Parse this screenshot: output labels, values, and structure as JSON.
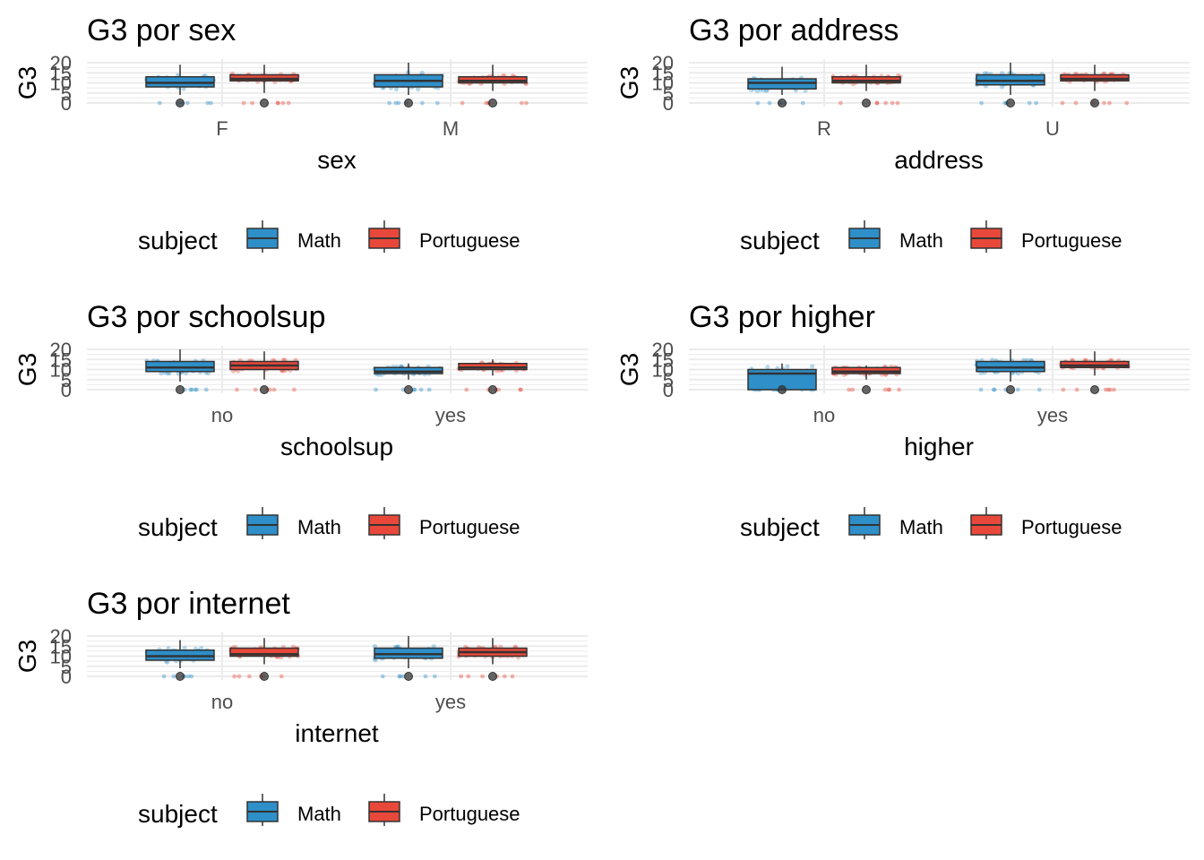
{
  "colors": {
    "math": "#2e8fc9",
    "portuguese": "#e8483a",
    "grid": "#ebebeb",
    "text": "#4d4d4d"
  },
  "legend_title": "subject",
  "legend_labels": [
    "Math",
    "Portuguese"
  ],
  "chart_data": [
    {
      "type": "boxplot",
      "title": "G3 por sex",
      "xlabel": "sex",
      "ylabel": "G3",
      "categories": [
        "F",
        "M"
      ],
      "ylim": [
        0,
        20
      ],
      "yticks": [
        0,
        5,
        10,
        15,
        20
      ],
      "grid": true,
      "legend_position": "bottom",
      "series": [
        {
          "name": "Math",
          "stats": [
            {
              "min": 4,
              "q1": 8,
              "median": 10,
              "q3": 13,
              "max": 19
            },
            {
              "min": 4,
              "q1": 8,
              "median": 11,
              "q3": 14,
              "max": 20
            }
          ]
        },
        {
          "name": "Portuguese",
          "stats": [
            {
              "min": 5,
              "q1": 11,
              "median": 12,
              "q3": 14,
              "max": 19
            },
            {
              "min": 6,
              "q1": 10,
              "median": 11,
              "q3": 13,
              "max": 19
            }
          ]
        }
      ]
    },
    {
      "type": "boxplot",
      "title": "G3 por address",
      "xlabel": "address",
      "ylabel": "G3",
      "categories": [
        "R",
        "U"
      ],
      "ylim": [
        0,
        20
      ],
      "yticks": [
        0,
        5,
        10,
        15,
        20
      ],
      "grid": true,
      "legend_position": "bottom",
      "series": [
        {
          "name": "Math",
          "stats": [
            {
              "min": 4,
              "q1": 7,
              "median": 10,
              "q3": 12,
              "max": 18
            },
            {
              "min": 4,
              "q1": 9,
              "median": 11,
              "q3": 14,
              "max": 20
            }
          ]
        },
        {
          "name": "Portuguese",
          "stats": [
            {
              "min": 6,
              "q1": 10,
              "median": 11,
              "q3": 13,
              "max": 19
            },
            {
              "min": 6,
              "q1": 11,
              "median": 12,
              "q3": 14,
              "max": 19
            }
          ]
        }
      ]
    },
    {
      "type": "boxplot",
      "title": "G3 por schoolsup",
      "xlabel": "schoolsup",
      "ylabel": "G3",
      "categories": [
        "no",
        "yes"
      ],
      "ylim": [
        0,
        20
      ],
      "yticks": [
        0,
        5,
        10,
        15,
        20
      ],
      "grid": true,
      "legend_position": "bottom",
      "series": [
        {
          "name": "Math",
          "stats": [
            {
              "min": 4,
              "q1": 9,
              "median": 11,
              "q3": 14,
              "max": 20
            },
            {
              "min": 5,
              "q1": 8,
              "median": 9,
              "q3": 11,
              "max": 13
            }
          ]
        },
        {
          "name": "Portuguese",
          "stats": [
            {
              "min": 5,
              "q1": 10,
              "median": 12,
              "q3": 14,
              "max": 19
            },
            {
              "min": 7,
              "q1": 10,
              "median": 11,
              "q3": 13,
              "max": 15
            }
          ]
        }
      ]
    },
    {
      "type": "boxplot",
      "title": "G3 por higher",
      "xlabel": "higher",
      "ylabel": "G3",
      "categories": [
        "no",
        "yes"
      ],
      "ylim": [
        0,
        20
      ],
      "yticks": [
        0,
        5,
        10,
        15,
        20
      ],
      "grid": true,
      "legend_position": "bottom",
      "series": [
        {
          "name": "Math",
          "stats": [
            {
              "min": 0,
              "q1": 0,
              "median": 8,
              "q3": 10,
              "max": 13
            },
            {
              "min": 4,
              "q1": 9,
              "median": 11,
              "q3": 14,
              "max": 20
            }
          ]
        },
        {
          "name": "Portuguese",
          "stats": [
            {
              "min": 5,
              "q1": 8,
              "median": 9,
              "q3": 11,
              "max": 12
            },
            {
              "min": 7,
              "q1": 11,
              "median": 12,
              "q3": 14,
              "max": 19
            }
          ]
        }
      ]
    },
    {
      "type": "boxplot",
      "title": "G3 por internet",
      "xlabel": "internet",
      "ylabel": "G3",
      "categories": [
        "no",
        "yes"
      ],
      "ylim": [
        0,
        20
      ],
      "yticks": [
        0,
        5,
        10,
        15,
        20
      ],
      "grid": true,
      "legend_position": "bottom",
      "series": [
        {
          "name": "Math",
          "stats": [
            {
              "min": 4,
              "q1": 8,
              "median": 10,
              "q3": 13,
              "max": 18
            },
            {
              "min": 4,
              "q1": 9,
              "median": 11,
              "q3": 14,
              "max": 20
            }
          ]
        },
        {
          "name": "Portuguese",
          "stats": [
            {
              "min": 6,
              "q1": 10,
              "median": 11,
              "q3": 14,
              "max": 19
            },
            {
              "min": 6,
              "q1": 10,
              "median": 12,
              "q3": 14,
              "max": 19
            }
          ]
        }
      ]
    }
  ]
}
